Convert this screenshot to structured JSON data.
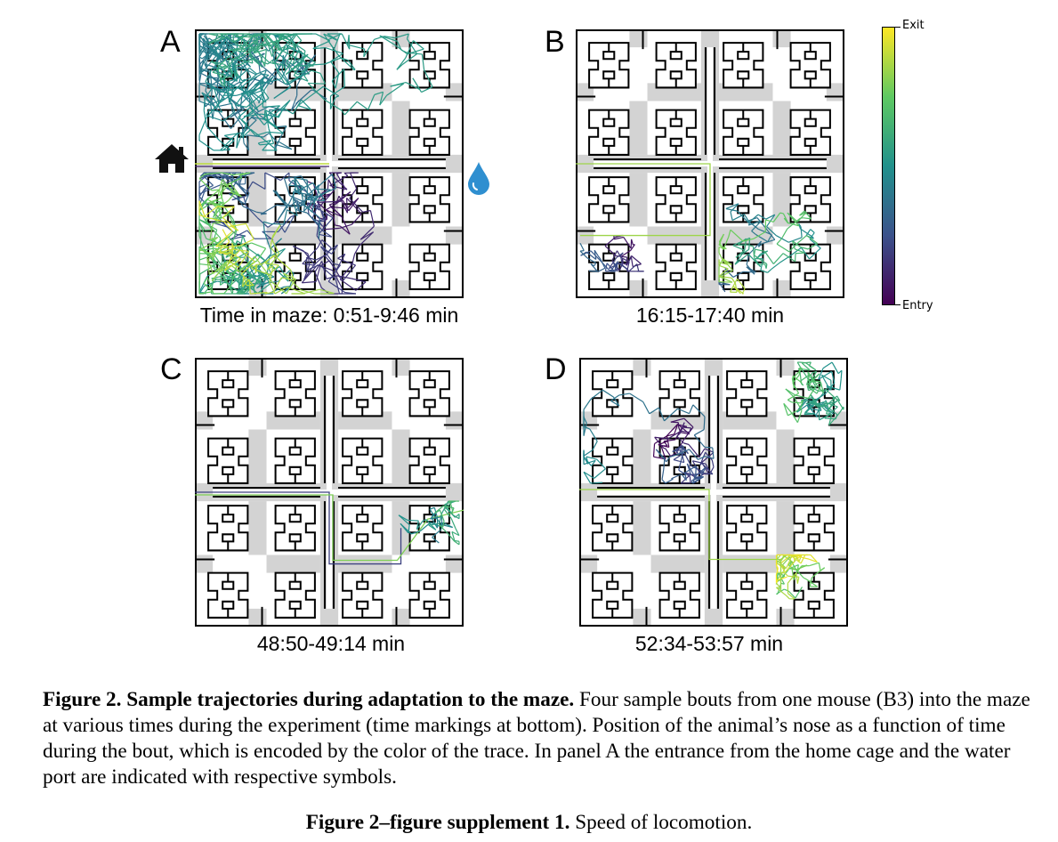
{
  "panels": [
    {
      "letter": "A",
      "caption": "Time in maze: 0:51-9:46 min"
    },
    {
      "letter": "B",
      "caption": "16:15-17:40 min"
    },
    {
      "letter": "C",
      "caption": "48:50-49:14 min"
    },
    {
      "letter": "D",
      "caption": "52:34-53:57 min"
    }
  ],
  "colorbar": {
    "top_label": "Exit",
    "bottom_label": "Entry",
    "colors": [
      "#440154",
      "#3b528b",
      "#21918c",
      "#5ec962",
      "#fde725"
    ]
  },
  "icons": {
    "home": "home-icon",
    "water": "water-drop-icon"
  },
  "colors": {
    "wall": "#000000",
    "blocked": "#d3d3d3",
    "water_drop": "#2f8fd0"
  },
  "caption": {
    "figure_label": "Figure 2.",
    "figure_title": "Sample trajectories during adaptation to the maze.",
    "body": "Four sample bouts from one mouse (B3) into the maze at various times during the experiment (time markings at bottom). Position of the animal’s nose as a function of time during the bout, which is encoded by the color of the trace. In panel A the entrance from the home cage and the water port are indicated with respective symbols.",
    "supplement_label": "Figure 2–figure supplement 1.",
    "supplement_text": "Speed of locomotion."
  }
}
